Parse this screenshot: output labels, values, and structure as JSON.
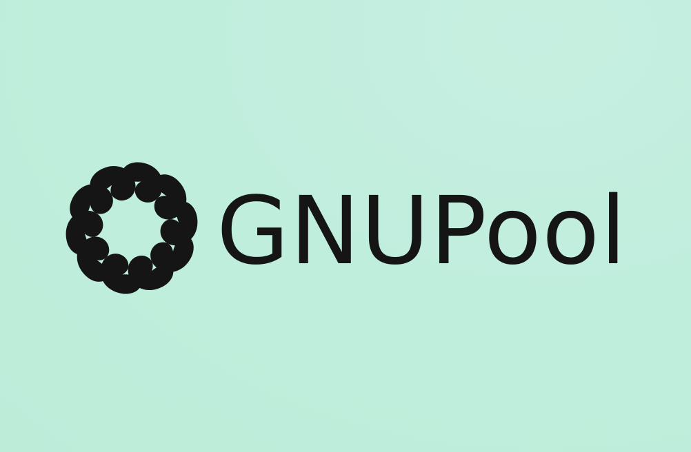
{
  "brand": {
    "name": "GNUPool",
    "mark_icon": "swirl-petals-icon",
    "petal_count": 10
  },
  "colors": {
    "background": "#c0eedd",
    "ink": "#151515"
  }
}
